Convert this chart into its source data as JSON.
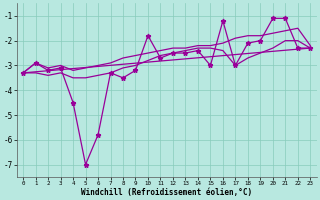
{
  "x": [
    0,
    1,
    2,
    3,
    4,
    5,
    6,
    7,
    8,
    9,
    10,
    11,
    12,
    13,
    14,
    15,
    16,
    17,
    18,
    19,
    20,
    21,
    22,
    23
  ],
  "y_main": [
    -3.3,
    -2.9,
    -3.2,
    -3.1,
    -4.5,
    -7.0,
    -5.8,
    -3.3,
    -3.5,
    -3.2,
    -1.8,
    -2.7,
    -2.5,
    -2.5,
    -2.4,
    -3.0,
    -1.2,
    -3.0,
    -2.1,
    -2.0,
    -1.1,
    -1.1,
    -2.3,
    -2.3
  ],
  "y_line1": [
    -3.3,
    -2.9,
    -3.1,
    -3.0,
    -3.2,
    -3.1,
    -3.0,
    -2.9,
    -2.7,
    -2.6,
    -2.5,
    -2.4,
    -2.3,
    -2.3,
    -2.2,
    -2.2,
    -2.1,
    -1.9,
    -1.8,
    -1.8,
    -1.7,
    -1.6,
    -1.5,
    -2.2
  ],
  "y_line2": [
    -3.3,
    -3.3,
    -3.4,
    -3.3,
    -3.5,
    -3.5,
    -3.4,
    -3.3,
    -3.1,
    -3.0,
    -2.8,
    -2.6,
    -2.5,
    -2.4,
    -2.3,
    -2.3,
    -2.4,
    -3.0,
    -2.7,
    -2.5,
    -2.3,
    -2.0,
    -2.0,
    -2.3
  ],
  "color": "#990099",
  "bg_color": "#b8e8e0",
  "grid_color": "#88ccbb",
  "xlabel": "Windchill (Refroidissement éolien,°C)",
  "ylim": [
    -7.5,
    -0.5
  ],
  "xlim": [
    -0.5,
    23.5
  ],
  "yticks": [
    -7,
    -6,
    -5,
    -4,
    -3,
    -2,
    -1
  ],
  "xticks": [
    0,
    1,
    2,
    3,
    4,
    5,
    6,
    7,
    8,
    9,
    10,
    11,
    12,
    13,
    14,
    15,
    16,
    17,
    18,
    19,
    20,
    21,
    22,
    23
  ]
}
